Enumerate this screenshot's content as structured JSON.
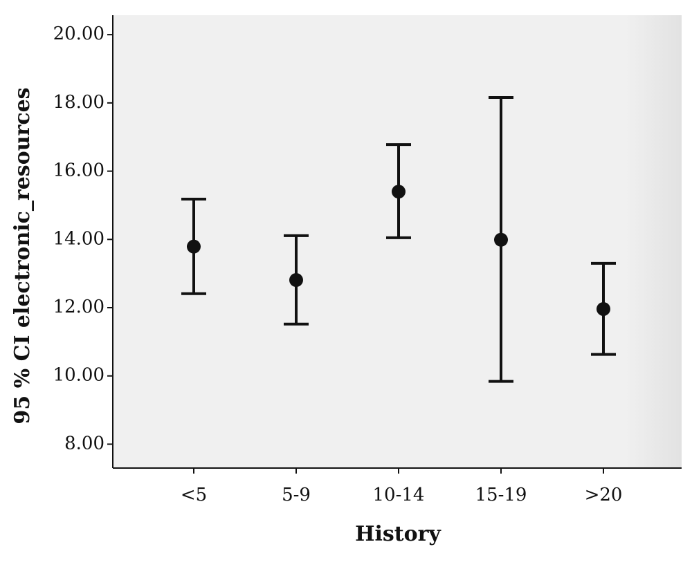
{
  "chart_data": {
    "type": "errorbar",
    "x_label": "History",
    "y_label": "95 % CI electronic_resources",
    "categories": [
      "<5",
      "5-9",
      "10-14",
      "15-19",
      ">20"
    ],
    "values": [
      13.79,
      12.81,
      15.4,
      13.99,
      11.96
    ],
    "ci_lower": [
      12.41,
      11.52,
      14.05,
      9.84,
      10.63
    ],
    "ci_upper": [
      15.18,
      14.11,
      16.78,
      18.16,
      13.3
    ],
    "color": "#111111",
    "ylim": [
      7.3,
      20.57
    ],
    "yticks": [
      {
        "value": 8,
        "label": "8.00"
      },
      {
        "value": 10,
        "label": "10.00"
      },
      {
        "value": 12,
        "label": "12.00"
      },
      {
        "value": 14,
        "label": "14.00"
      },
      {
        "value": 16,
        "label": "16.00"
      },
      {
        "value": 18,
        "label": "18.00"
      },
      {
        "value": 20,
        "label": "20.00"
      }
    ]
  }
}
